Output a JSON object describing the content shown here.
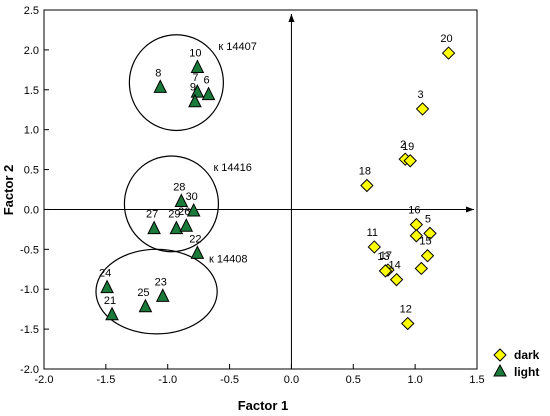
{
  "chart_data": {
    "type": "scatter",
    "xlabel": "Factor 1",
    "ylabel": "Factor  2",
    "xlim": [
      -2.0,
      1.5
    ],
    "ylim": [
      -2.0,
      2.5
    ],
    "xticks": [
      "-2.0",
      "-1.5",
      "-1.0",
      "-0.5",
      "0.0",
      "0.5",
      "1.0",
      "1.5"
    ],
    "yticks": [
      "-2.0",
      "-1.5",
      "-1.0",
      "-0.5",
      "0.0",
      "0.5",
      "1.0",
      "1.5",
      "2.0",
      "2.5"
    ],
    "xtick_values": [
      -2.0,
      -1.5,
      -1.0,
      -0.5,
      0.0,
      0.5,
      1.0,
      1.5
    ],
    "ytick_values": [
      -2.0,
      -1.5,
      -1.0,
      -0.5,
      0.0,
      0.5,
      1.0,
      1.5,
      2.0,
      2.5
    ],
    "legend": {
      "position": "bottom-right",
      "entries": [
        "dark",
        "light"
      ]
    },
    "series": [
      {
        "name": "dark",
        "marker": "diamond",
        "color": "#ffff00",
        "points": [
          {
            "label": "20",
            "x": 1.27,
            "y": 1.96
          },
          {
            "label": "3",
            "x": 1.06,
            "y": 1.26
          },
          {
            "label": "2",
            "x": 0.92,
            "y": 0.63
          },
          {
            "label": "19",
            "x": 0.96,
            "y": 0.61
          },
          {
            "label": "18",
            "x": 0.61,
            "y": 0.3
          },
          {
            "label": "16",
            "x": 1.01,
            "y": -0.19
          },
          {
            "label": "5",
            "x": 1.12,
            "y": -0.3
          },
          {
            "label": "",
            "x": 1.01,
            "y": -0.33
          },
          {
            "label": "11",
            "x": 0.67,
            "y": -0.47
          },
          {
            "label": "15",
            "x": 1.1,
            "y": -0.58
          },
          {
            "label": "17",
            "x": 0.78,
            "y": -0.76
          },
          {
            "label": "13",
            "x": 0.76,
            "y": -0.77
          },
          {
            "label": "14",
            "x": 0.85,
            "y": -0.88
          },
          {
            "label": "",
            "x": 1.05,
            "y": -0.74
          },
          {
            "label": "12",
            "x": 0.94,
            "y": -1.43
          }
        ]
      },
      {
        "name": "light",
        "marker": "triangle",
        "color": "#1a7a3a",
        "points": [
          {
            "label": "10",
            "x": -0.76,
            "y": 1.78
          },
          {
            "label": "8",
            "x": -1.06,
            "y": 1.53
          },
          {
            "label": "7",
            "x": -0.76,
            "y": 1.47
          },
          {
            "label": "6",
            "x": -0.67,
            "y": 1.44
          },
          {
            "label": "9",
            "x": -0.78,
            "y": 1.35
          },
          {
            "label": "28",
            "x": -0.89,
            "y": 0.1
          },
          {
            "label": "30",
            "x": -0.79,
            "y": -0.02
          },
          {
            "label": "27",
            "x": -1.11,
            "y": -0.24
          },
          {
            "label": "29",
            "x": -0.93,
            "y": -0.24
          },
          {
            "label": "26",
            "x": -0.85,
            "y": -0.21
          },
          {
            "label": "22",
            "x": -0.76,
            "y": -0.55
          },
          {
            "label": "24",
            "x": -1.49,
            "y": -0.98
          },
          {
            "label": "23",
            "x": -1.04,
            "y": -1.09
          },
          {
            "label": "25",
            "x": -1.18,
            "y": -1.22
          },
          {
            "label": "21",
            "x": -1.45,
            "y": -1.32
          }
        ]
      }
    ],
    "clusters": [
      {
        "label": "к 14407",
        "cx": -0.93,
        "cy": 1.59,
        "rx": 0.38,
        "ry": 0.6
      },
      {
        "label": "к 14416",
        "cx": -0.97,
        "cy": 0.07,
        "rx": 0.38,
        "ry": 0.6
      },
      {
        "label": "к 14408",
        "cx": -1.09,
        "cy": -1.03,
        "rx": 0.49,
        "ry": 0.53
      }
    ]
  }
}
